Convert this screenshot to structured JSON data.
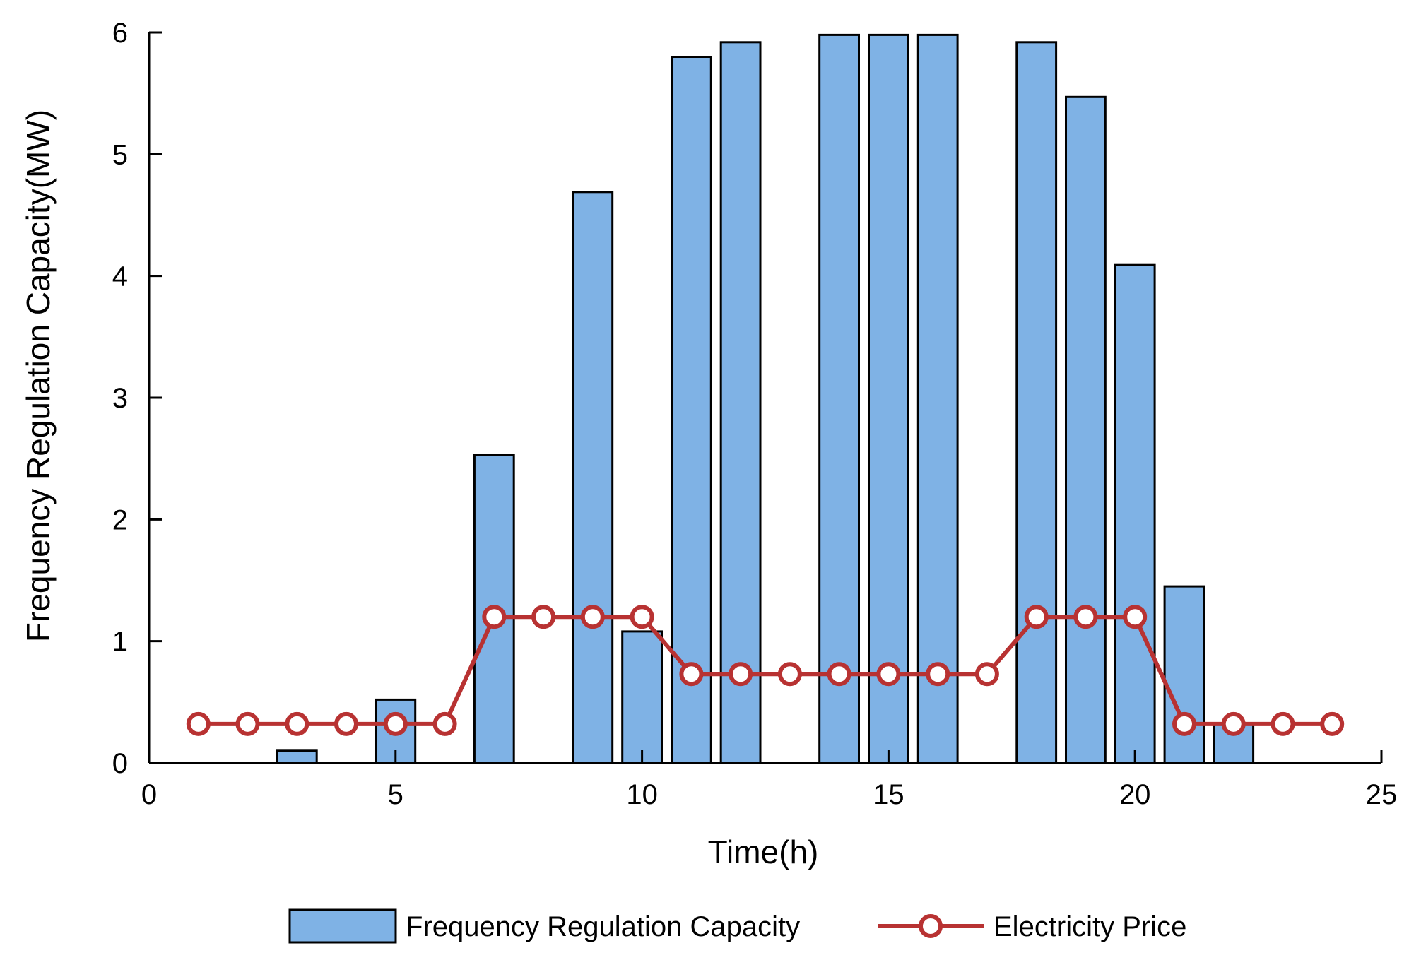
{
  "chart_data": {
    "type": "bar",
    "title": "",
    "xlabel": "Time(h)",
    "ylabel": "Frequency Regulation Capacity(MW)",
    "xlim": [
      0,
      25
    ],
    "ylim": [
      0,
      6
    ],
    "xticks": [
      0,
      5,
      10,
      15,
      20,
      25
    ],
    "yticks": [
      0,
      1,
      2,
      3,
      4,
      5,
      6
    ],
    "grid": false,
    "legend_position": "bottom",
    "bar_color": "#7fb2e5",
    "line_color": "#b83232",
    "x": [
      1,
      2,
      3,
      4,
      5,
      6,
      7,
      8,
      9,
      10,
      11,
      12,
      13,
      14,
      15,
      16,
      17,
      18,
      19,
      20,
      21,
      22,
      23,
      24
    ],
    "series": [
      {
        "name": "Frequency Regulation Capacity",
        "type": "bar",
        "values": [
          0,
          0,
          0.1,
          0,
          0.52,
          0,
          2.53,
          0,
          4.69,
          1.08,
          5.8,
          5.92,
          0,
          5.98,
          5.98,
          5.98,
          0,
          5.92,
          5.47,
          4.09,
          1.45,
          0.32,
          0,
          0
        ]
      },
      {
        "name": "Electricity Price",
        "type": "line",
        "values": [
          0.32,
          0.32,
          0.32,
          0.32,
          0.32,
          0.32,
          1.2,
          1.2,
          1.2,
          1.2,
          0.73,
          0.73,
          0.73,
          0.73,
          0.73,
          0.73,
          0.73,
          1.2,
          1.2,
          1.2,
          0.32,
          0.32,
          0.32,
          0.32
        ]
      }
    ]
  }
}
